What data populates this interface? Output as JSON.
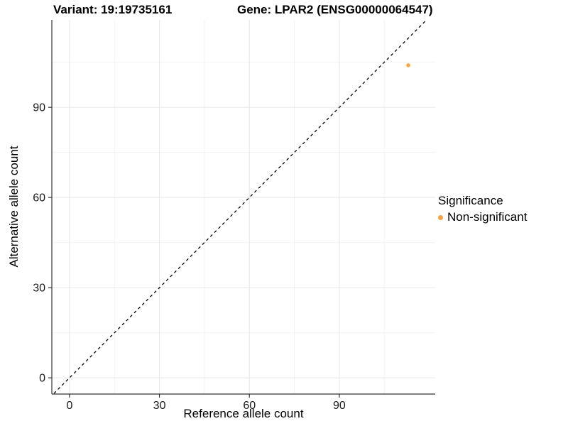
{
  "titles": {
    "variant": "Variant: 19:19735161",
    "gene": "Gene: LPAR2 (ENSG00000064547)"
  },
  "chart_data": {
    "type": "scatter",
    "xlabel": "Reference allele count",
    "ylabel": "Alternative allele count",
    "xlim": [
      -5.9,
      122
    ],
    "ylim": [
      -5.4,
      119.1
    ],
    "x_ticks": [
      0,
      30,
      60,
      90
    ],
    "y_ticks": [
      0,
      30,
      60,
      90
    ],
    "x_minor_ticks": [
      15,
      45,
      75,
      105
    ],
    "y_minor_ticks": [
      15,
      45,
      75,
      105
    ],
    "grid": true,
    "legend_position": "right",
    "reference_line": {
      "type": "abline",
      "intercept": 0,
      "slope": 1,
      "style": "dashed",
      "color": "#000000"
    },
    "series": [
      {
        "name": "Non-significant",
        "color": "#F9A242",
        "points": [
          {
            "x": 113,
            "y": 104
          }
        ]
      }
    ],
    "legend": {
      "title": "Significance",
      "items": [
        {
          "label": "Non-significant",
          "color": "#F9A242"
        }
      ]
    },
    "colors": {
      "grid_major": "#E6E6E6",
      "grid_minor": "#F2F2F2",
      "axis_line": "#333333",
      "tick": "#333333",
      "tick_label": "#1A1A1A",
      "background": "#FFFFFF"
    }
  }
}
